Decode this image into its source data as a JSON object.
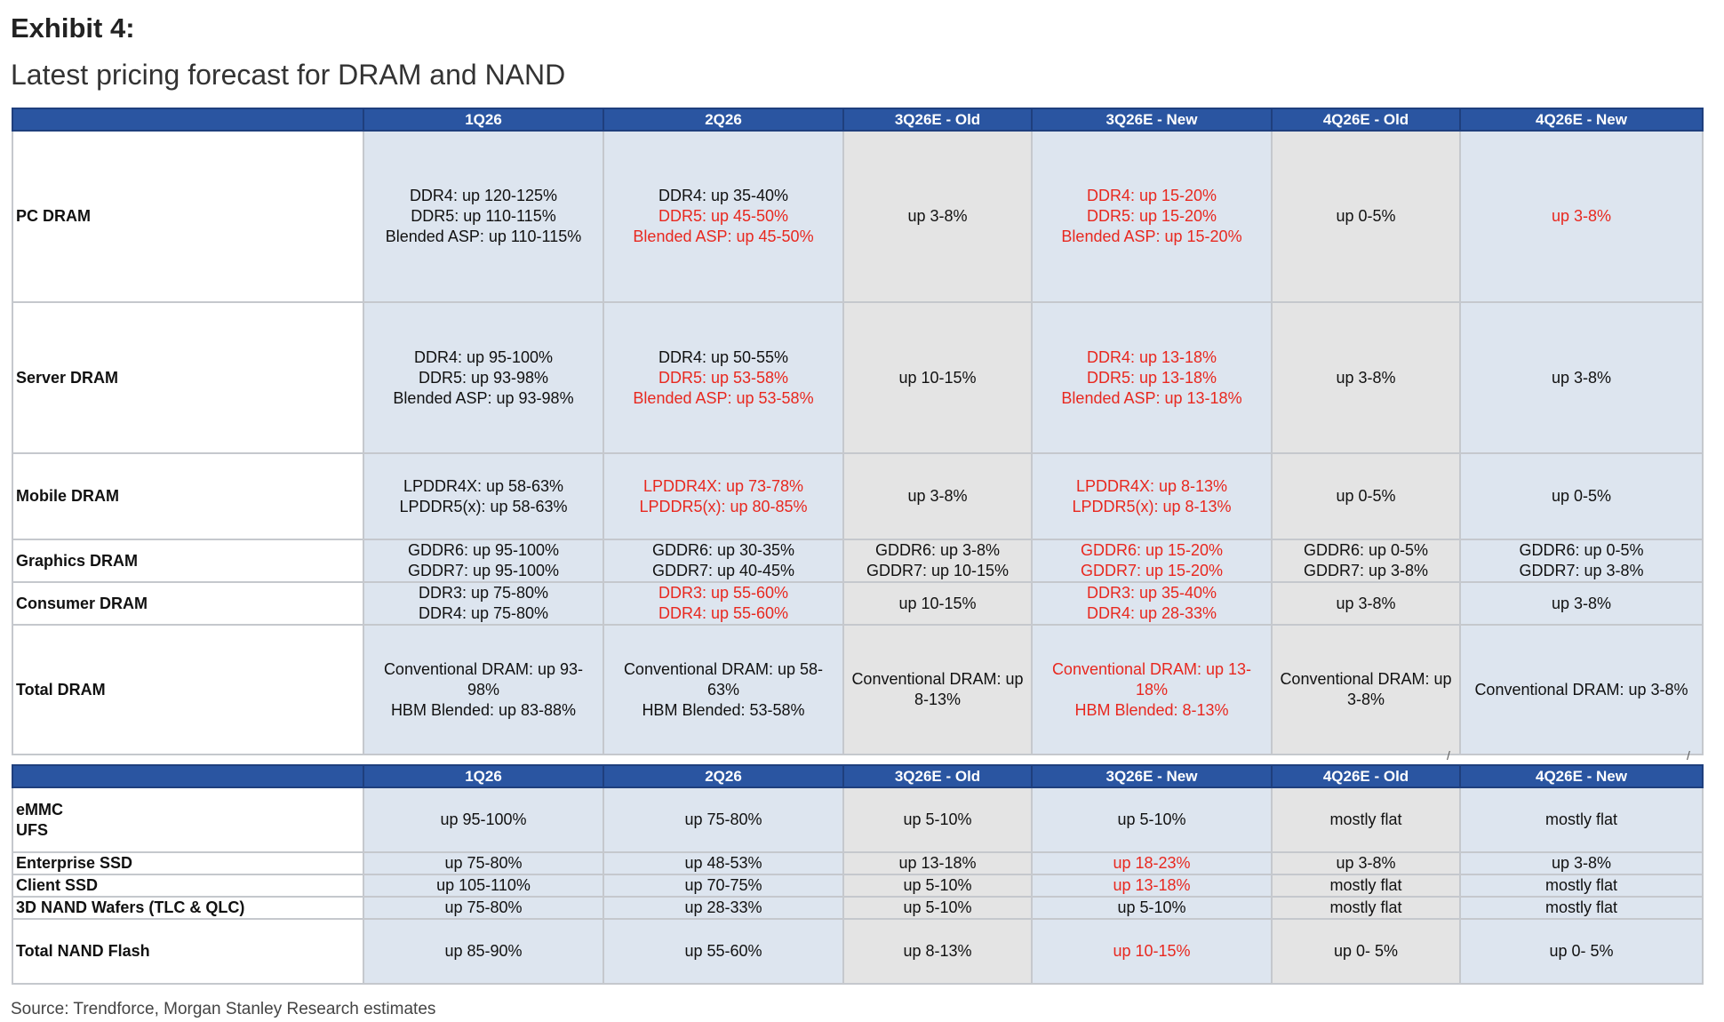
{
  "header": {
    "title": "Exhibit 4:",
    "subtitle": "Latest pricing forecast for DRAM and NAND"
  },
  "columns": [
    "1Q26",
    "2Q26",
    "3Q26E - Old",
    "3Q26E - New",
    "4Q26E - Old",
    "4Q26E - New"
  ],
  "colors": {
    "header_bg": "#2a55a1",
    "cell_blue": "#dde5ef",
    "cell_grey": "#e4e4e4",
    "highlight_red": "#e8281f"
  },
  "dram": {
    "rows": [
      {
        "label": [
          "PC DRAM"
        ],
        "cells": [
          [
            {
              "t": "DDR4: up 120-125%"
            },
            {
              "t": "DDR5: up 110-115%"
            },
            {
              "t": "Blended ASP: up 110-115%"
            }
          ],
          [
            {
              "t": "DDR4: up 35-40%"
            },
            {
              "t": "DDR5: up 45-50%",
              "r": true
            },
            {
              "t": "Blended ASP: up 45-50%",
              "r": true
            }
          ],
          [
            {
              "t": "up 3-8%"
            }
          ],
          [
            {
              "t": "DDR4: up 15-20%",
              "r": true
            },
            {
              "t": "DDR5: up 15-20%",
              "r": true
            },
            {
              "t": "Blended ASP: up 15-20%",
              "r": true
            }
          ],
          [
            {
              "t": "up 0-5%"
            }
          ],
          [
            {
              "t": "up 3-8%",
              "r": true
            }
          ]
        ]
      },
      {
        "label": [
          "Server DRAM"
        ],
        "cells": [
          [
            {
              "t": "DDR4: up 95-100%"
            },
            {
              "t": "DDR5: up 93-98%"
            },
            {
              "t": "Blended ASP: up 93-98%"
            }
          ],
          [
            {
              "t": "DDR4: up 50-55%"
            },
            {
              "t": "DDR5: up 53-58%",
              "r": true
            },
            {
              "t": "Blended ASP: up 53-58%",
              "r": true
            }
          ],
          [
            {
              "t": "up 10-15%"
            }
          ],
          [
            {
              "t": "DDR4: up 13-18%",
              "r": true
            },
            {
              "t": "DDR5: up 13-18%",
              "r": true
            },
            {
              "t": "Blended ASP: up 13-18%",
              "r": true
            }
          ],
          [
            {
              "t": "up 3-8%"
            }
          ],
          [
            {
              "t": "up 3-8%"
            }
          ]
        ]
      },
      {
        "label": [
          "Mobile DRAM"
        ],
        "cells": [
          [
            {
              "t": "LPDDR4X: up 58-63%"
            },
            {
              "t": "LPDDR5(x): up 58-63%"
            }
          ],
          [
            {
              "t": "LPDDR4X: up 73-78%",
              "r": true
            },
            {
              "t": "LPDDR5(x): up 80-85%",
              "r": true
            }
          ],
          [
            {
              "t": "up 3-8%"
            }
          ],
          [
            {
              "t": "LPDDR4X: up 8-13%",
              "r": true
            },
            {
              "t": "LPDDR5(x): up 8-13%",
              "r": true
            }
          ],
          [
            {
              "t": "up 0-5%"
            }
          ],
          [
            {
              "t": "up 0-5%"
            }
          ]
        ]
      },
      {
        "label": [
          "Graphics DRAM"
        ],
        "cells": [
          [
            {
              "t": "GDDR6: up 95-100%"
            },
            {
              "t": "GDDR7: up 95-100%"
            }
          ],
          [
            {
              "t": "GDDR6: up 30-35%"
            },
            {
              "t": "GDDR7: up 40-45%"
            }
          ],
          [
            {
              "t": "GDDR6: up 3-8%"
            },
            {
              "t": "GDDR7: up 10-15%"
            }
          ],
          [
            {
              "t": "GDDR6: up 15-20%",
              "r": true
            },
            {
              "t": "GDDR7: up 15-20%",
              "r": true
            }
          ],
          [
            {
              "t": "GDDR6: up 0-5%"
            },
            {
              "t": "GDDR7: up 3-8%"
            }
          ],
          [
            {
              "t": "GDDR6: up 0-5%"
            },
            {
              "t": "GDDR7: up 3-8%"
            }
          ]
        ]
      },
      {
        "label": [
          "Consumer DRAM"
        ],
        "cells": [
          [
            {
              "t": "DDR3: up 75-80%"
            },
            {
              "t": "DDR4: up 75-80%"
            }
          ],
          [
            {
              "t": "DDR3: up 55-60%",
              "r": true
            },
            {
              "t": "DDR4: up 55-60%",
              "r": true
            }
          ],
          [
            {
              "t": "up 10-15%"
            }
          ],
          [
            {
              "t": "DDR3: up 35-40%",
              "r": true
            },
            {
              "t": "DDR4: up 28-33%",
              "r": true
            }
          ],
          [
            {
              "t": "up 3-8%"
            }
          ],
          [
            {
              "t": "up 3-8%"
            }
          ]
        ]
      },
      {
        "label": [
          "Total DRAM"
        ],
        "cells": [
          [
            {
              "t": "Conventional DRAM: up 93-"
            },
            {
              "t": "98%"
            },
            {
              "t": "HBM Blended: up 83-88%"
            }
          ],
          [
            {
              "t": "Conventional DRAM: up 58-"
            },
            {
              "t": "63%"
            },
            {
              "t": "HBM Blended: 53-58%"
            }
          ],
          [
            {
              "t": "Conventional DRAM: up"
            },
            {
              "t": "8-13%"
            }
          ],
          [
            {
              "t": "Conventional DRAM: up 13-",
              "r": true
            },
            {
              "t": "18%",
              "r": true
            },
            {
              "t": "HBM Blended: 8-13%",
              "r": true
            }
          ],
          [
            {
              "t": "Conventional DRAM: up"
            },
            {
              "t": "3-8%"
            }
          ],
          [
            {
              "t": "Conventional DRAM: up 3-8%"
            }
          ]
        ]
      }
    ]
  },
  "nand": {
    "rows": [
      {
        "label": [
          "eMMC",
          "UFS"
        ],
        "cells": [
          [
            {
              "t": "up 95-100%"
            }
          ],
          [
            {
              "t": "up 75-80%"
            }
          ],
          [
            {
              "t": "up 5-10%"
            }
          ],
          [
            {
              "t": "up 5-10%"
            }
          ],
          [
            {
              "t": "mostly flat"
            }
          ],
          [
            {
              "t": "mostly flat"
            }
          ]
        ]
      },
      {
        "label": [
          "Enterprise SSD"
        ],
        "cells": [
          [
            {
              "t": "up 75-80%"
            }
          ],
          [
            {
              "t": "up 48-53%"
            }
          ],
          [
            {
              "t": "up 13-18%"
            }
          ],
          [
            {
              "t": "up 18-23%",
              "r": true
            }
          ],
          [
            {
              "t": "up 3-8%"
            }
          ],
          [
            {
              "t": "up 3-8%"
            }
          ]
        ]
      },
      {
        "label": [
          "Client SSD"
        ],
        "cells": [
          [
            {
              "t": "up 105-110%"
            }
          ],
          [
            {
              "t": "up 70-75%"
            }
          ],
          [
            {
              "t": "up 5-10%"
            }
          ],
          [
            {
              "t": "up 13-18%",
              "r": true
            }
          ],
          [
            {
              "t": "mostly flat"
            }
          ],
          [
            {
              "t": "mostly flat"
            }
          ]
        ]
      },
      {
        "label": [
          "3D NAND Wafers (TLC & QLC)"
        ],
        "cells": [
          [
            {
              "t": "up 75-80%"
            }
          ],
          [
            {
              "t": "up 28-33%"
            }
          ],
          [
            {
              "t": "up 5-10%"
            }
          ],
          [
            {
              "t": "up 5-10%"
            }
          ],
          [
            {
              "t": "mostly flat"
            }
          ],
          [
            {
              "t": "mostly flat"
            }
          ]
        ]
      },
      {
        "label": [
          "Total NAND Flash"
        ],
        "cells": [
          [
            {
              "t": "up 85-90%"
            }
          ],
          [
            {
              "t": "up 55-60%"
            }
          ],
          [
            {
              "t": "up 8-13%"
            }
          ],
          [
            {
              "t": "up 10-15%",
              "r": true
            }
          ],
          [
            {
              "t": "up 0- 5%"
            }
          ],
          [
            {
              "t": "up 0- 5%"
            }
          ]
        ]
      }
    ]
  },
  "footer": {
    "source": "Source: Trendforce, Morgan Stanley Research estimates"
  }
}
